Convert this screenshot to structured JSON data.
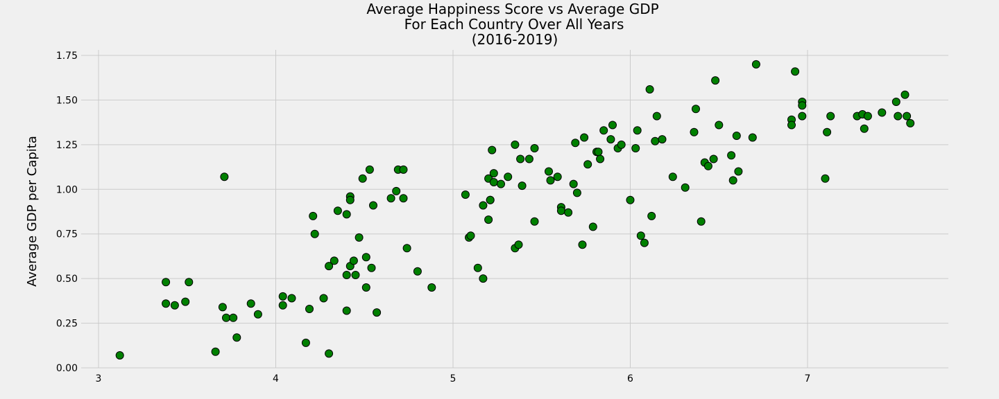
{
  "chart_data": {
    "type": "scatter",
    "title": [
      "Average Happiness Score vs Average GDP",
      "For Each Country Over All Years",
      "(2016-2019)"
    ],
    "xlabel": "",
    "ylabel": "Average GDP per Capita",
    "xlim": [
      2.9,
      7.8
    ],
    "ylim": [
      0.0,
      1.79
    ],
    "xticks": [
      3,
      4,
      5,
      6,
      7
    ],
    "xtick_labels": [
      "3",
      "4",
      "5",
      "6",
      "7"
    ],
    "yticks": [
      0.0,
      0.25,
      0.5,
      0.75,
      1.0,
      1.25,
      1.5,
      1.75
    ],
    "ytick_labels": [
      "0.00",
      "0.25",
      "0.50",
      "0.75",
      "1.00",
      "1.25",
      "1.50",
      "1.75"
    ],
    "grid": true,
    "marker_color": "#008000",
    "marker_edge": "#000000",
    "points": [
      [
        3.12,
        0.07
      ],
      [
        3.38,
        0.48
      ],
      [
        3.38,
        0.36
      ],
      [
        3.43,
        0.35
      ],
      [
        3.49,
        0.37
      ],
      [
        3.51,
        0.48
      ],
      [
        3.66,
        0.09
      ],
      [
        3.7,
        0.34
      ],
      [
        3.71,
        1.07
      ],
      [
        3.72,
        0.28
      ],
      [
        3.76,
        0.28
      ],
      [
        3.78,
        0.17
      ],
      [
        3.86,
        0.36
      ],
      [
        3.9,
        0.3
      ],
      [
        4.04,
        0.4
      ],
      [
        4.04,
        0.35
      ],
      [
        4.09,
        0.39
      ],
      [
        4.17,
        0.14
      ],
      [
        4.19,
        0.33
      ],
      [
        4.21,
        0.85
      ],
      [
        4.22,
        0.75
      ],
      [
        4.27,
        0.39
      ],
      [
        4.3,
        0.57
      ],
      [
        4.3,
        0.08
      ],
      [
        4.33,
        0.6
      ],
      [
        4.35,
        0.88
      ],
      [
        4.4,
        0.86
      ],
      [
        4.4,
        0.52
      ],
      [
        4.4,
        0.32
      ],
      [
        4.42,
        0.96
      ],
      [
        4.42,
        0.94
      ],
      [
        4.42,
        0.57
      ],
      [
        4.44,
        0.6
      ],
      [
        4.45,
        0.52
      ],
      [
        4.47,
        0.73
      ],
      [
        4.49,
        1.06
      ],
      [
        4.51,
        0.62
      ],
      [
        4.51,
        0.45
      ],
      [
        4.53,
        1.11
      ],
      [
        4.54,
        0.56
      ],
      [
        4.55,
        0.91
      ],
      [
        4.57,
        0.31
      ],
      [
        4.65,
        0.95
      ],
      [
        4.68,
        0.99
      ],
      [
        4.69,
        1.11
      ],
      [
        4.72,
        1.11
      ],
      [
        4.72,
        0.95
      ],
      [
        4.74,
        0.67
      ],
      [
        4.8,
        0.54
      ],
      [
        4.88,
        0.45
      ],
      [
        5.07,
        0.97
      ],
      [
        5.09,
        0.73
      ],
      [
        5.1,
        0.74
      ],
      [
        5.14,
        0.56
      ],
      [
        5.17,
        0.91
      ],
      [
        5.17,
        0.5
      ],
      [
        5.2,
        1.06
      ],
      [
        5.21,
        0.94
      ],
      [
        5.21,
        0.94
      ],
      [
        5.2,
        0.83
      ],
      [
        5.22,
        1.22
      ],
      [
        5.23,
        1.09
      ],
      [
        5.23,
        1.04
      ],
      [
        5.27,
        1.03
      ],
      [
        5.31,
        1.07
      ],
      [
        5.35,
        1.25
      ],
      [
        5.35,
        0.67
      ],
      [
        5.38,
        1.17
      ],
      [
        5.37,
        0.69
      ],
      [
        5.39,
        1.02
      ],
      [
        5.43,
        1.17
      ],
      [
        5.46,
        1.23
      ],
      [
        5.46,
        0.82
      ],
      [
        5.54,
        1.1
      ],
      [
        5.55,
        1.05
      ],
      [
        5.59,
        1.07
      ],
      [
        5.61,
        0.9
      ],
      [
        5.61,
        0.88
      ],
      [
        5.65,
        0.87
      ],
      [
        5.68,
        1.03
      ],
      [
        5.69,
        1.26
      ],
      [
        5.7,
        0.98
      ],
      [
        5.73,
        0.69
      ],
      [
        5.74,
        1.29
      ],
      [
        5.76,
        1.14
      ],
      [
        5.79,
        0.79
      ],
      [
        5.81,
        1.21
      ],
      [
        5.82,
        1.21
      ],
      [
        5.83,
        1.17
      ],
      [
        5.85,
        1.33
      ],
      [
        5.89,
        1.28
      ],
      [
        5.9,
        1.36
      ],
      [
        5.93,
        1.23
      ],
      [
        5.95,
        1.25
      ],
      [
        6.0,
        0.94
      ],
      [
        6.03,
        1.23
      ],
      [
        6.04,
        1.33
      ],
      [
        6.06,
        0.74
      ],
      [
        6.08,
        0.7
      ],
      [
        6.11,
        1.56
      ],
      [
        6.12,
        0.85
      ],
      [
        6.14,
        1.27
      ],
      [
        6.15,
        1.41
      ],
      [
        6.18,
        1.28
      ],
      [
        6.24,
        1.07
      ],
      [
        6.31,
        1.01
      ],
      [
        6.36,
        1.32
      ],
      [
        6.37,
        1.45
      ],
      [
        6.4,
        0.82
      ],
      [
        6.42,
        1.15
      ],
      [
        6.44,
        1.13
      ],
      [
        6.47,
        1.17
      ],
      [
        6.48,
        1.61
      ],
      [
        6.5,
        1.36
      ],
      [
        6.57,
        1.19
      ],
      [
        6.58,
        1.05
      ],
      [
        6.6,
        1.3
      ],
      [
        6.61,
        1.1
      ],
      [
        6.69,
        1.29
      ],
      [
        6.71,
        1.7
      ],
      [
        6.91,
        1.39
      ],
      [
        6.91,
        1.36
      ],
      [
        6.93,
        1.66
      ],
      [
        6.97,
        1.49
      ],
      [
        6.97,
        1.47
      ],
      [
        6.97,
        1.41
      ],
      [
        7.1,
        1.06
      ],
      [
        7.11,
        1.32
      ],
      [
        7.13,
        1.41
      ],
      [
        7.28,
        1.41
      ],
      [
        7.31,
        1.42
      ],
      [
        7.32,
        1.34
      ],
      [
        7.34,
        1.41
      ],
      [
        7.42,
        1.43
      ],
      [
        7.5,
        1.49
      ],
      [
        7.51,
        1.41
      ],
      [
        7.55,
        1.53
      ],
      [
        7.56,
        1.41
      ],
      [
        7.58,
        1.37
      ]
    ]
  }
}
